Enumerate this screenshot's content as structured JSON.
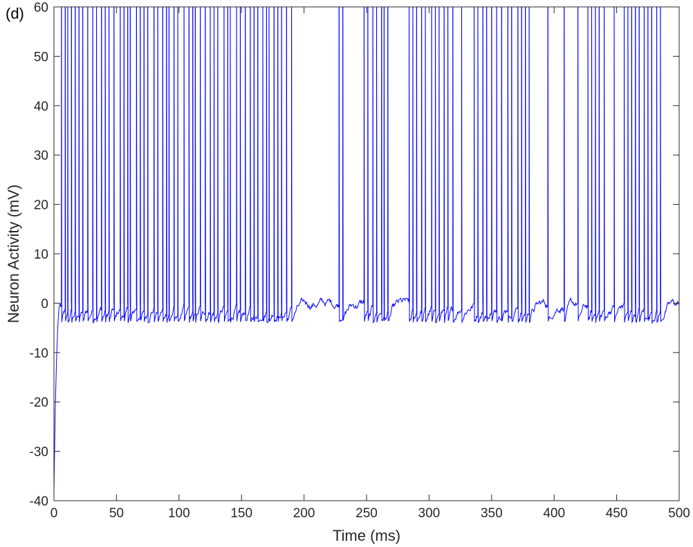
{
  "panel_label": "(d)",
  "colors": {
    "trace": "#0000ff",
    "axes": "#262626",
    "background": "#ffffff"
  },
  "chart_data": {
    "type": "line",
    "title": "",
    "xlabel": "Time (ms)",
    "ylabel": "Neuron Activity (mV)",
    "xlim": [
      0,
      500
    ],
    "ylim": [
      -40,
      60
    ],
    "xticks": [
      0,
      50,
      100,
      150,
      200,
      250,
      300,
      350,
      400,
      450,
      500
    ],
    "yticks": [
      -40,
      -30,
      -20,
      -10,
      0,
      10,
      20,
      30,
      40,
      50,
      60
    ],
    "xtick_labels": [
      "0",
      "50",
      "100",
      "150",
      "200",
      "250",
      "300",
      "350",
      "400",
      "450",
      "500"
    ],
    "ytick_labels": [
      "-40",
      "-30",
      "-20",
      "-10",
      "0",
      "10",
      "20",
      "30",
      "40",
      "50",
      "60"
    ],
    "grid": false,
    "legend": "none",
    "series": [
      {
        "initial_rise": [
          [
            0,
            -38
          ],
          [
            1,
            -22
          ],
          [
            2,
            -12
          ],
          [
            3,
            -5
          ],
          [
            4,
            -1
          ],
          [
            5,
            0
          ]
        ],
        "baseline_mV": [
          -4,
          1
        ],
        "spike_peak_mV": 60,
        "spike_times_ms": [
          6,
          9,
          11,
          14,
          17,
          20,
          23,
          27,
          31,
          34,
          38,
          41,
          44,
          48,
          53,
          56,
          59,
          61,
          66,
          69,
          72,
          75,
          80,
          83,
          87,
          90,
          92,
          96,
          99,
          104,
          108,
          111,
          113,
          117,
          121,
          125,
          128,
          131,
          136,
          139,
          141,
          146,
          149,
          153,
          157,
          160,
          163,
          167,
          170,
          172,
          176,
          179,
          182,
          186,
          190,
          228,
          231,
          248,
          251,
          255,
          258,
          262,
          264,
          267,
          284,
          287,
          290,
          294,
          297,
          302,
          305,
          308,
          312,
          315,
          319,
          326,
          336,
          339,
          343,
          346,
          350,
          354,
          358,
          363,
          366,
          371,
          374,
          377,
          380,
          395,
          408,
          419,
          427,
          430,
          433,
          436,
          440,
          448,
          456,
          459,
          462,
          465,
          468,
          472,
          475,
          478,
          482,
          485
        ]
      }
    ]
  }
}
